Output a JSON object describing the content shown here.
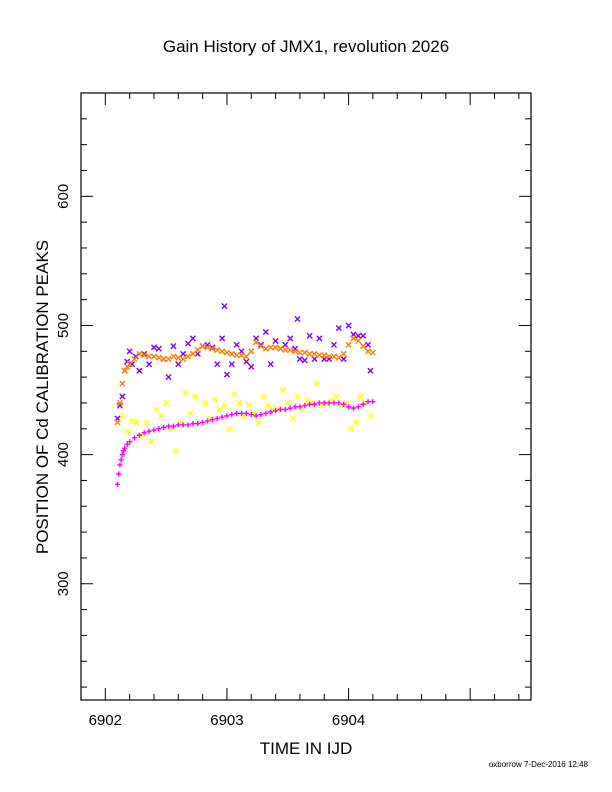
{
  "chart_data": {
    "type": "scatter",
    "title": "Gain History of JMX1, revolution 2026",
    "xlabel": "TIME IN IJD",
    "ylabel": "POSITION OF Cd CALIBRATION PEAKS",
    "xlim": [
      6901.8,
      6905.5
    ],
    "ylim": [
      210,
      680
    ],
    "xticks": [
      6902,
      6903,
      6904
    ],
    "xtick_labels": [
      "6902",
      "6903",
      "6904"
    ],
    "yticks": [
      300,
      400,
      500,
      600
    ],
    "ytick_labels": [
      "300",
      "400",
      "500",
      "600"
    ],
    "grid": false,
    "legend": "none",
    "series": [
      {
        "color": "#8000ff",
        "marker": "x",
        "x": [
          6902.1,
          6902.12,
          6902.14,
          6902.16,
          6902.18,
          6902.2,
          6902.22,
          6902.25,
          6902.28,
          6902.32,
          6902.36,
          6902.4,
          6902.44,
          6902.48,
          6902.52,
          6902.56,
          6902.6,
          6902.64,
          6902.68,
          6902.72,
          6902.76,
          6902.8,
          6902.84,
          6902.88,
          6902.92,
          6902.96,
          6902.98,
          6903.0,
          6903.04,
          6903.08,
          6903.12,
          6903.16,
          6903.2,
          6903.24,
          6903.28,
          6903.32,
          6903.36,
          6903.4,
          6903.44,
          6903.48,
          6903.52,
          6903.56,
          6903.58,
          6903.6,
          6903.64,
          6903.68,
          6903.72,
          6903.76,
          6903.8,
          6903.84,
          6903.88,
          6903.92,
          6903.96,
          6904.0,
          6904.04,
          6904.08,
          6904.12,
          6904.16,
          6904.18
        ],
        "y": [
          428,
          438,
          445,
          465,
          472,
          480,
          470,
          476,
          465,
          478,
          470,
          483,
          482,
          474,
          460,
          484,
          470,
          478,
          486,
          490,
          478,
          484,
          485,
          483,
          470,
          490,
          515,
          462,
          470,
          485,
          480,
          472,
          468,
          490,
          485,
          495,
          470,
          488,
          482,
          485,
          490,
          482,
          505,
          474,
          473,
          492,
          474,
          490,
          474,
          474,
          485,
          498,
          474,
          500,
          493,
          492,
          492,
          485,
          465
        ]
      },
      {
        "color": "#ff8000",
        "marker": "x",
        "x": [
          6902.1,
          6902.12,
          6902.14,
          6902.16,
          6902.18,
          6902.2,
          6902.24,
          6902.28,
          6902.32,
          6902.36,
          6902.4,
          6902.44,
          6902.48,
          6902.52,
          6902.56,
          6902.6,
          6902.64,
          6902.68,
          6902.72,
          6902.76,
          6902.8,
          6902.84,
          6902.88,
          6902.92,
          6902.96,
          6903.0,
          6903.04,
          6903.08,
          6903.12,
          6903.16,
          6903.2,
          6903.24,
          6903.28,
          6903.32,
          6903.36,
          6903.4,
          6903.44,
          6903.48,
          6903.52,
          6903.56,
          6903.6,
          6903.64,
          6903.68,
          6903.72,
          6903.76,
          6903.8,
          6903.84,
          6903.88,
          6903.92,
          6903.96,
          6904.0,
          6904.04,
          6904.08,
          6904.12,
          6904.16,
          6904.2
        ],
        "y": [
          425,
          440,
          455,
          465,
          468,
          470,
          474,
          478,
          477,
          476,
          476,
          475,
          474,
          474,
          476,
          475,
          474,
          476,
          478,
          481,
          484,
          483,
          482,
          481,
          480,
          479,
          478,
          477,
          477,
          476,
          480,
          487,
          484,
          482,
          483,
          483,
          482,
          481,
          481,
          480,
          479,
          479,
          478,
          478,
          477,
          477,
          476,
          476,
          475,
          478,
          485,
          490,
          488,
          484,
          480,
          479
        ]
      },
      {
        "color": "#ffff00",
        "marker": "x",
        "x": [
          6902.14,
          6902.18,
          6902.22,
          6902.26,
          6902.3,
          6902.34,
          6902.38,
          6902.42,
          6902.46,
          6902.5,
          6902.54,
          6902.58,
          6902.62,
          6902.66,
          6902.7,
          6902.74,
          6902.78,
          6902.82,
          6902.86,
          6902.9,
          6902.94,
          6902.98,
          6903.02,
          6903.06,
          6903.1,
          6903.14,
          6903.18,
          6903.22,
          6903.26,
          6903.3,
          6903.34,
          6903.38,
          6903.42,
          6903.46,
          6903.5,
          6903.54,
          6903.58,
          6903.62,
          6903.66,
          6903.7,
          6903.74,
          6903.78,
          6903.82,
          6903.86,
          6903.9,
          6903.94,
          6903.98,
          6904.02,
          6904.06,
          6904.1,
          6904.14,
          6904.18
        ],
        "y": [
          430,
          418,
          426,
          425,
          415,
          425,
          410,
          435,
          430,
          440,
          420,
          403,
          425,
          448,
          432,
          445,
          425,
          440,
          428,
          443,
          435,
          438,
          420,
          447,
          440,
          430,
          438,
          432,
          425,
          445,
          438,
          435,
          435,
          450,
          440,
          428,
          445,
          435,
          442,
          440,
          455,
          438,
          440,
          442,
          445,
          438,
          440,
          420,
          425,
          445,
          440,
          430
        ]
      },
      {
        "color": "#ff00ff",
        "marker": "+",
        "x": [
          6902.1,
          6902.11,
          6902.12,
          6902.13,
          6902.14,
          6902.15,
          6902.16,
          6902.18,
          6902.2,
          6902.24,
          6902.28,
          6902.32,
          6902.36,
          6902.4,
          6902.44,
          6902.48,
          6902.52,
          6902.56,
          6902.6,
          6902.64,
          6902.68,
          6902.72,
          6902.76,
          6902.8,
          6902.84,
          6902.88,
          6902.92,
          6902.96,
          6903.0,
          6903.04,
          6903.08,
          6903.12,
          6903.16,
          6903.2,
          6903.24,
          6903.28,
          6903.32,
          6903.36,
          6903.4,
          6903.44,
          6903.48,
          6903.52,
          6903.56,
          6903.6,
          6903.64,
          6903.68,
          6903.72,
          6903.76,
          6903.8,
          6903.84,
          6903.88,
          6903.92,
          6903.96,
          6904.0,
          6904.04,
          6904.08,
          6904.12,
          6904.16,
          6904.2
        ],
        "y": [
          377,
          385,
          392,
          396,
          400,
          403,
          405,
          408,
          410,
          413,
          415,
          417,
          418,
          419,
          420,
          421,
          422,
          422,
          423,
          423,
          423,
          424,
          424,
          425,
          426,
          427,
          428,
          429,
          430,
          431,
          432,
          432,
          432,
          431,
          430,
          431,
          432,
          433,
          434,
          435,
          435,
          436,
          437,
          437,
          438,
          439,
          439,
          440,
          440,
          440,
          440,
          440,
          439,
          437,
          436,
          437,
          439,
          441,
          441
        ]
      }
    ]
  },
  "footer": {
    "text": "oxborrow  7-Dec-2016 12:48"
  }
}
